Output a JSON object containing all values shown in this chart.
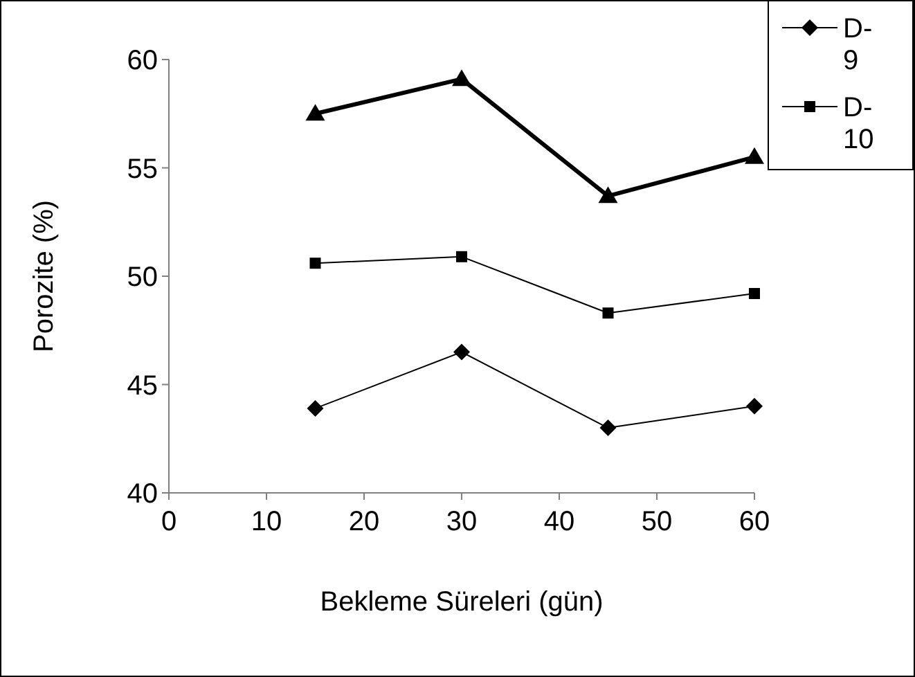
{
  "chart_data": {
    "type": "line",
    "xlabel": "Bekleme Süreleri (gün)",
    "ylabel": "Porozite (%)",
    "x": [
      15,
      30,
      45,
      60
    ],
    "series": [
      {
        "name": "D-9",
        "color": "#000000",
        "marker": "diamond",
        "values": [
          43.9,
          46.5,
          43.0,
          44.0
        ]
      },
      {
        "name": "D-10",
        "color": "#000000",
        "marker": "square",
        "values": [
          50.6,
          50.9,
          48.3,
          49.2
        ]
      },
      {
        "color": "#000000",
        "marker": "triangle",
        "values": [
          57.5,
          59.1,
          53.7,
          55.5
        ]
      }
    ],
    "xlim": [
      0,
      60
    ],
    "xticks": [
      0,
      10,
      20,
      30,
      40,
      50,
      60
    ],
    "ylim": [
      40,
      60
    ],
    "yticks": [
      40,
      45,
      50,
      55,
      60
    ],
    "grid": false,
    "legend": "top right"
  }
}
